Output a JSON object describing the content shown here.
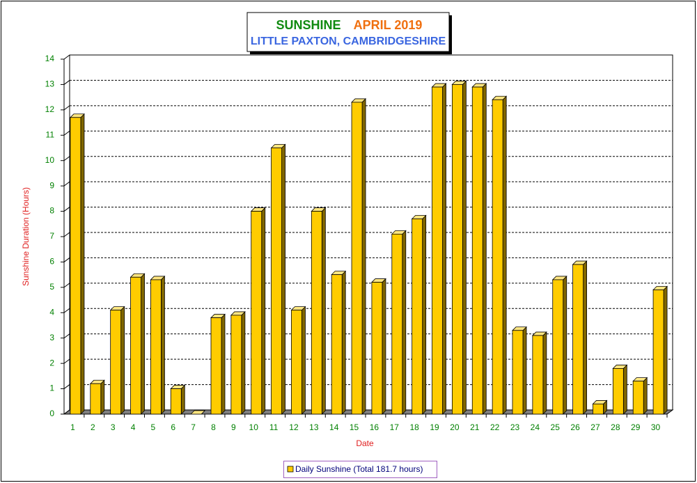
{
  "chart_data": {
    "type": "bar",
    "title": [
      "SUNSHINE",
      "APRIL 2019"
    ],
    "subtitle": "LITTLE PAXTON, CAMBRIDGESHIRE",
    "x_label": "Date",
    "y_label": "Sunshine Duration (Hours)",
    "categories": [
      "1",
      "2",
      "3",
      "4",
      "5",
      "6",
      "7",
      "8",
      "9",
      "10",
      "11",
      "12",
      "13",
      "14",
      "15",
      "16",
      "17",
      "18",
      "19",
      "20",
      "21",
      "22",
      "23",
      "24",
      "25",
      "26",
      "27",
      "28",
      "29",
      "30"
    ],
    "series": [
      {
        "name": "Daily Sunshine (Total 181.7 hours)",
        "color": "#ffcc00",
        "values": [
          11.7,
          1.2,
          4.1,
          5.4,
          5.3,
          1.0,
          0.0,
          3.8,
          3.9,
          8.0,
          10.5,
          4.1,
          8.0,
          5.5,
          12.3,
          5.2,
          7.1,
          7.7,
          12.9,
          13.0,
          12.9,
          12.4,
          3.3,
          3.1,
          5.3,
          5.9,
          0.4,
          1.8,
          1.3,
          4.9
        ]
      }
    ],
    "ylim": [
      0,
      14
    ],
    "yticks": [
      0,
      1,
      2,
      3,
      4,
      5,
      6,
      7,
      8,
      9,
      10,
      11,
      12,
      13,
      14
    ],
    "grid": true
  }
}
